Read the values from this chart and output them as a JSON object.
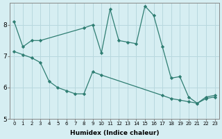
{
  "xlabel": "Humidex (Indice chaleur)",
  "background_color": "#d6eef2",
  "line_color": "#2e7d72",
  "grid_color": "#b8d8de",
  "line1_x": [
    0,
    1,
    2,
    3,
    8,
    9,
    10,
    11,
    12,
    13,
    14,
    15,
    16,
    17,
    18,
    19,
    20,
    21,
    22,
    23
  ],
  "line1_y": [
    8.1,
    7.3,
    7.5,
    7.5,
    7.9,
    8.0,
    7.1,
    8.5,
    7.5,
    7.45,
    7.4,
    8.6,
    8.3,
    7.3,
    6.3,
    6.35,
    5.7,
    5.5,
    5.65,
    5.7
  ],
  "line2_x": [
    0,
    1,
    2,
    3,
    4,
    5,
    6,
    7,
    8,
    9,
    10,
    17,
    18,
    19,
    20,
    21,
    22,
    23
  ],
  "line2_y": [
    7.15,
    7.05,
    6.95,
    6.8,
    6.2,
    6.0,
    5.9,
    5.8,
    5.8,
    6.5,
    6.4,
    5.75,
    5.65,
    5.6,
    5.55,
    5.5,
    5.7,
    5.75
  ],
  "ylim": [
    5.0,
    8.7
  ],
  "yticks": [
    5,
    6,
    7,
    8
  ],
  "xticks": [
    0,
    1,
    2,
    3,
    4,
    5,
    6,
    7,
    8,
    9,
    10,
    11,
    12,
    13,
    14,
    15,
    16,
    17,
    18,
    19,
    20,
    21,
    22,
    23
  ]
}
